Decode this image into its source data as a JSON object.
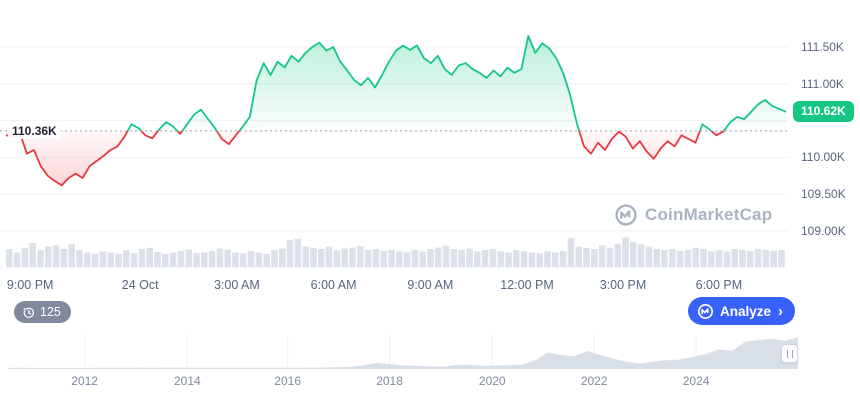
{
  "watermark": {
    "text": "CoinMarketCap"
  },
  "controls": {
    "history_badge": {
      "count": "125"
    },
    "analyze_button": {
      "label": "Analyze",
      "chevron": "›"
    }
  },
  "timeline": {
    "years": [
      {
        "label": "2012",
        "f": 0.097
      },
      {
        "label": "2014",
        "f": 0.227
      },
      {
        "label": "2016",
        "f": 0.354
      },
      {
        "label": "2018",
        "f": 0.483
      },
      {
        "label": "2020",
        "f": 0.613
      },
      {
        "label": "2022",
        "f": 0.742
      },
      {
        "label": "2024",
        "f": 0.871
      }
    ],
    "values": [
      0.004,
      0.005,
      0.004,
      0.003,
      0.003,
      0.004,
      0.004,
      0.005,
      0.006,
      0.008,
      0.012,
      0.009,
      0.014,
      0.012,
      0.009,
      0.008,
      0.007,
      0.006,
      0.006,
      0.007,
      0.008,
      0.009,
      0.011,
      0.013,
      0.016,
      0.022,
      0.04,
      0.08,
      0.17,
      0.12,
      0.08,
      0.07,
      0.05,
      0.05,
      0.09,
      0.1,
      0.07,
      0.08,
      0.09,
      0.1,
      0.24,
      0.5,
      0.42,
      0.38,
      0.55,
      0.42,
      0.3,
      0.2,
      0.15,
      0.2,
      0.25,
      0.27,
      0.35,
      0.45,
      0.6,
      0.55,
      0.85,
      0.9,
      0.95,
      0.88,
      1.0
    ]
  },
  "chart_data": {
    "type": "line",
    "title": "",
    "xlabel": "",
    "ylabel": "",
    "ylim": [
      108.9,
      111.75
    ],
    "grid": true,
    "baseline": {
      "value": 110.36,
      "label": "110.36K"
    },
    "last_price": {
      "value": 110.62,
      "label": "110.62K"
    },
    "y_ticks": [
      {
        "label": "111.50K",
        "value": 111.5
      },
      {
        "label": "111.00K",
        "value": 111.0
      },
      {
        "label": "110.00K",
        "value": 110.0
      },
      {
        "label": "109.50K",
        "value": 109.5
      },
      {
        "label": "109.00K",
        "value": 109.0
      }
    ],
    "grid_values": [
      111.5,
      111.0,
      110.5,
      110.0,
      109.5,
      109.0
    ],
    "x_ticks": [
      {
        "label": "9:00 PM",
        "f": 0.031
      },
      {
        "label": "24 Oct",
        "f": 0.172
      },
      {
        "label": "3:00 AM",
        "f": 0.296
      },
      {
        "label": "6:00 AM",
        "f": 0.42
      },
      {
        "label": "9:00 AM",
        "f": 0.544
      },
      {
        "label": "12:00 PM",
        "f": 0.668
      },
      {
        "label": "3:00 PM",
        "f": 0.791
      },
      {
        "label": "6:00 PM",
        "f": 0.914
      }
    ],
    "prices": [
      110.3,
      110.28,
      110.33,
      110.05,
      110.1,
      109.88,
      109.75,
      109.68,
      109.62,
      109.72,
      109.78,
      109.72,
      109.88,
      109.95,
      110.02,
      110.1,
      110.15,
      110.28,
      110.45,
      110.4,
      110.3,
      110.26,
      110.38,
      110.48,
      110.42,
      110.32,
      110.45,
      110.58,
      110.65,
      110.52,
      110.4,
      110.25,
      110.18,
      110.3,
      110.42,
      110.55,
      111.05,
      111.28,
      111.12,
      111.3,
      111.22,
      111.38,
      111.3,
      111.42,
      111.5,
      111.56,
      111.45,
      111.5,
      111.3,
      111.18,
      111.05,
      110.98,
      111.08,
      110.95,
      111.12,
      111.3,
      111.45,
      111.52,
      111.46,
      111.52,
      111.35,
      111.28,
      111.38,
      111.2,
      111.12,
      111.25,
      111.28,
      111.2,
      111.15,
      111.08,
      111.18,
      111.1,
      111.22,
      111.15,
      111.2,
      111.65,
      111.42,
      111.55,
      111.48,
      111.35,
      111.15,
      110.85,
      110.45,
      110.15,
      110.05,
      110.2,
      110.1,
      110.25,
      110.35,
      110.28,
      110.12,
      110.22,
      110.08,
      109.98,
      110.12,
      110.22,
      110.15,
      110.3,
      110.25,
      110.2,
      110.45,
      110.38,
      110.3,
      110.35,
      110.48,
      110.55,
      110.52,
      110.62,
      110.72,
      110.78,
      110.7,
      110.66,
      110.62
    ],
    "volumes": [
      0.5,
      0.35,
      0.55,
      0.75,
      0.45,
      0.6,
      0.65,
      0.5,
      0.7,
      0.45,
      0.35,
      0.3,
      0.4,
      0.35,
      0.3,
      0.45,
      0.33,
      0.5,
      0.55,
      0.38,
      0.3,
      0.36,
      0.42,
      0.48,
      0.33,
      0.36,
      0.42,
      0.52,
      0.47,
      0.36,
      0.32,
      0.42,
      0.36,
      0.3,
      0.46,
      0.52,
      0.88,
      0.92,
      0.6,
      0.55,
      0.5,
      0.6,
      0.45,
      0.52,
      0.56,
      0.62,
      0.46,
      0.5,
      0.42,
      0.46,
      0.4,
      0.36,
      0.46,
      0.4,
      0.5,
      0.56,
      0.62,
      0.5,
      0.46,
      0.52,
      0.4,
      0.46,
      0.5,
      0.4,
      0.36,
      0.46,
      0.4,
      0.36,
      0.32,
      0.4,
      0.36,
      0.42,
      0.95,
      0.6,
      0.55,
      0.5,
      0.65,
      0.55,
      0.72,
      0.98,
      0.8,
      0.7,
      0.6,
      0.5,
      0.46,
      0.5,
      0.42,
      0.46,
      0.55,
      0.5,
      0.4,
      0.46,
      0.4,
      0.5,
      0.46,
      0.42,
      0.5,
      0.46,
      0.42,
      0.46
    ],
    "colors": {
      "up": "#16c784",
      "down": "#ea3943",
      "grid": "#eff2f5",
      "volume": "#dce1e9",
      "accent_blue": "#3861fb",
      "badge_gray": "#7f8a9c",
      "axis_text": "#58667e"
    }
  }
}
